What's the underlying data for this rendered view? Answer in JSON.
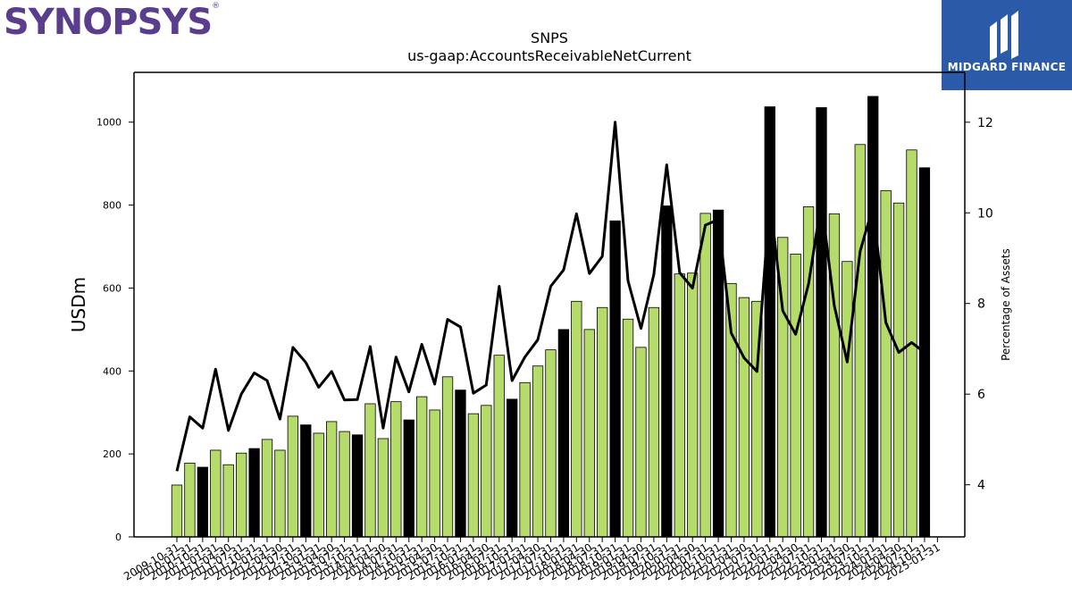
{
  "logos": {
    "left": "SYNOPSYS",
    "right": "MIDGARD FINANCE"
  },
  "chart_data": {
    "type": "bar+line",
    "title": "SNPS",
    "subtitle": "us-gaap:AccountsReceivableNetCurrent",
    "ylabel": "USDm",
    "y2label": "Percentage of Assets",
    "ylim": [
      0,
      1120
    ],
    "y2lim": [
      2.85,
      13.1
    ],
    "yticks": [
      0,
      200,
      400,
      600,
      800,
      1000
    ],
    "y2ticks": [
      4,
      6,
      8,
      10,
      12
    ],
    "colors": {
      "bar_quarter": "#b5dc6a",
      "bar_fiscal_year_end": "#000000",
      "line": "#000000"
    },
    "categories": [
      "2009-10-31",
      "2010-01-31",
      "2010-10-31",
      "2011-01-31",
      "2011-04-30",
      "2011-07-31",
      "2011-10-31",
      "2012-01-31",
      "2012-04-30",
      "2012-07-31",
      "2012-10-31",
      "2013-01-31",
      "2013-04-30",
      "2013-07-31",
      "2013-10-31",
      "2014-01-31",
      "2014-04-30",
      "2014-07-31",
      "2014-10-31",
      "2015-01-31",
      "2015-04-30",
      "2015-07-31",
      "2015-10-31",
      "2016-01-31",
      "2016-04-30",
      "2016-07-31",
      "2016-10-31",
      "2017-01-31",
      "2017-04-30",
      "2017-07-31",
      "2017-10-31",
      "2018-01-31",
      "2018-04-30",
      "2018-07-31",
      "2018-10-31",
      "2019-01-31",
      "2019-04-30",
      "2019-07-31",
      "2019-10-31",
      "2020-01-31",
      "2020-04-30",
      "2020-07-31",
      "2020-10-31",
      "2021-01-31",
      "2021-04-30",
      "2021-07-31",
      "2021-10-31",
      "2022-01-31",
      "2022-04-30",
      "2022-07-31",
      "2022-10-31",
      "2023-01-31",
      "2023-04-30",
      "2023-07-31",
      "2023-10-31",
      "2024-01-31",
      "2024-04-30",
      "2024-07-31",
      "2024-10-31",
      "2025-01-31"
    ],
    "series": [
      {
        "type": "bar",
        "values": [
          125,
          178,
          168,
          209,
          174,
          202,
          213,
          235,
          209,
          291,
          270,
          250,
          278,
          254,
          246,
          321,
          237,
          326,
          282,
          338,
          306,
          386,
          354,
          297,
          317,
          438,
          332,
          372,
          412,
          451,
          500,
          568,
          500,
          553,
          762,
          525,
          457,
          553,
          798,
          634,
          636,
          780,
          788,
          611,
          577,
          568,
          1037,
          722,
          682,
          796,
          1035,
          779,
          664,
          946,
          1062,
          835,
          805,
          933,
          890,
          null
        ],
        "fiscal_year_end": [
          false,
          false,
          true,
          false,
          false,
          false,
          true,
          false,
          false,
          false,
          true,
          false,
          false,
          false,
          true,
          false,
          false,
          false,
          true,
          false,
          false,
          false,
          true,
          false,
          false,
          false,
          true,
          false,
          false,
          false,
          true,
          false,
          false,
          false,
          true,
          false,
          false,
          false,
          true,
          false,
          false,
          false,
          true,
          false,
          false,
          false,
          true,
          false,
          false,
          false,
          true,
          false,
          false,
          false,
          true,
          false,
          false,
          false,
          true,
          false
        ]
      },
      {
        "type": "line",
        "axis": "right",
        "values": [
          4.3,
          5.5,
          5.25,
          6.55,
          5.2,
          6.0,
          6.47,
          6.3,
          5.45,
          7.03,
          6.7,
          6.15,
          6.5,
          5.87,
          5.88,
          7.05,
          5.25,
          6.82,
          6.05,
          7.1,
          6.22,
          7.65,
          7.48,
          6.02,
          6.2,
          8.38,
          6.3,
          6.82,
          7.2,
          8.38,
          8.74,
          9.98,
          8.66,
          9.04,
          12.0,
          8.5,
          7.45,
          8.64,
          11.06,
          8.68,
          8.34,
          9.73,
          9.85,
          7.35,
          6.8,
          6.5,
          10.3,
          7.84,
          7.32,
          8.43,
          10.25,
          7.95,
          6.71,
          9.15,
          10.14,
          7.58,
          6.92,
          7.14,
          6.92,
          null
        ]
      }
    ]
  }
}
